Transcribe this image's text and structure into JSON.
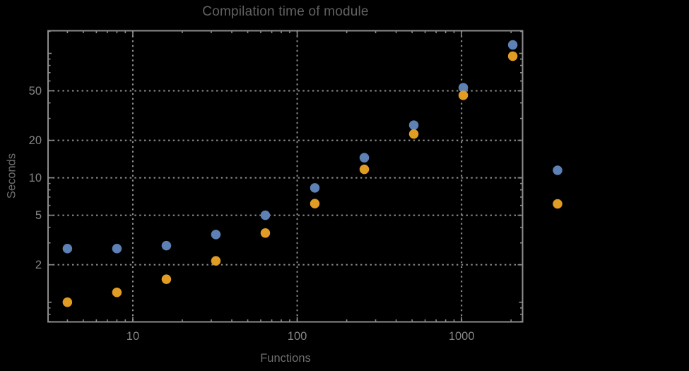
{
  "chart_data": {
    "type": "scatter",
    "title": "Compilation time of module",
    "xlabel": "Functions",
    "ylabel": "Seconds",
    "x_scale": "log",
    "y_scale": "log",
    "x_range": [
      3.05,
      2350
    ],
    "y_range": [
      0.695,
      152
    ],
    "grid": "dotted, at labeled major ticks only",
    "x": [
      4,
      8,
      16,
      32,
      64,
      128,
      256,
      512,
      1024,
      2048
    ],
    "series": [
      {
        "label": "",
        "color": "#5E81B5",
        "values": [
          2.7,
          2.7,
          2.85,
          3.5,
          5.0,
          8.3,
          14.5,
          26.5,
          53,
          117
        ]
      },
      {
        "label": "",
        "color": "#E19C24",
        "values": [
          1.0,
          1.2,
          1.53,
          2.15,
          3.6,
          6.2,
          11.7,
          22.5,
          46,
          95
        ]
      }
    ],
    "x_ticks_labeled": [
      10,
      100,
      1000
    ],
    "x_tick_labels": [
      "10",
      "100",
      "1000"
    ],
    "x_ticks_minor": [
      4,
      5,
      6,
      7,
      8,
      9,
      20,
      30,
      40,
      50,
      60,
      70,
      80,
      90,
      200,
      300,
      400,
      500,
      600,
      700,
      800,
      900,
      2000
    ],
    "y_ticks_labeled": [
      2,
      5,
      10,
      20,
      50
    ],
    "y_tick_labels": [
      "2",
      "5",
      "10",
      "20",
      "50"
    ],
    "y_ticks_medium": [
      1,
      100
    ],
    "y_ticks_minor": [
      0.7,
      0.8,
      0.9,
      3,
      4,
      6,
      7,
      8,
      9,
      30,
      40,
      60,
      70,
      80,
      90,
      150
    ],
    "legend": {
      "marker_colors": [
        "#5E81B5",
        "#E19C24"
      ]
    },
    "marker_size": 13.5,
    "colors": {
      "background": "#000000",
      "frame": "#8c8c8c",
      "grid": "#909090",
      "tick_labels": "#858585",
      "axis_labels": "#6e6e6e",
      "title": "#616161"
    }
  }
}
